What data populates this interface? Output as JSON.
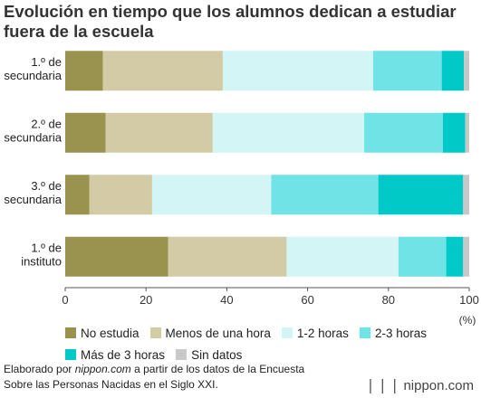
{
  "title": "Evolución en tiempo que los alumnos dedican a estudiar fuera de la escuela",
  "chart_data": {
    "type": "bar",
    "orientation": "horizontal",
    "stacked": true,
    "title": "Evolución en tiempo que los alumnos dedican a estudiar fuera de la escuela",
    "categories": [
      [
        "1.º de",
        "secundaria"
      ],
      [
        "2.º de",
        "secundaria"
      ],
      [
        "3.º de",
        "secundaria"
      ],
      [
        "1.º de",
        "instituto"
      ]
    ],
    "series": [
      {
        "name": "No estudia",
        "color": "#9a934f",
        "values": [
          9.3,
          10.0,
          6.0,
          25.5
        ]
      },
      {
        "name": "Menos de una hora",
        "color": "#d2cba5",
        "values": [
          29.7,
          26.5,
          15.5,
          29.3
        ]
      },
      {
        "name": "1-2 horas",
        "color": "#d3f5f6",
        "values": [
          37.2,
          37.5,
          29.5,
          27.7
        ]
      },
      {
        "name": "2-3 horas",
        "color": "#6fe3e6",
        "values": [
          17.0,
          19.5,
          26.5,
          11.8
        ]
      },
      {
        "name": "Más de 3 horas",
        "color": "#00c9c8",
        "values": [
          5.5,
          5.5,
          21.0,
          4.2
        ]
      },
      {
        "name": "Sin datos",
        "color": "#c8c8c8",
        "values": [
          1.3,
          1.0,
          1.5,
          1.5
        ]
      }
    ],
    "xlim": [
      0,
      100
    ],
    "xticks": [
      "0",
      "20",
      "40",
      "60",
      "80",
      "100"
    ],
    "xunit": "(%)",
    "grid": false,
    "legend_position": "bottom"
  },
  "source": {
    "prefix": "Elaborado por ",
    "site": "nippon.com",
    "suffix": " a partir de los datos de la Encuesta",
    "line2": "Sobre las Personas Nacidas en el Siglo XXI."
  },
  "brand": {
    "mark": "❘❘❘",
    "name": "nippon.com"
  }
}
